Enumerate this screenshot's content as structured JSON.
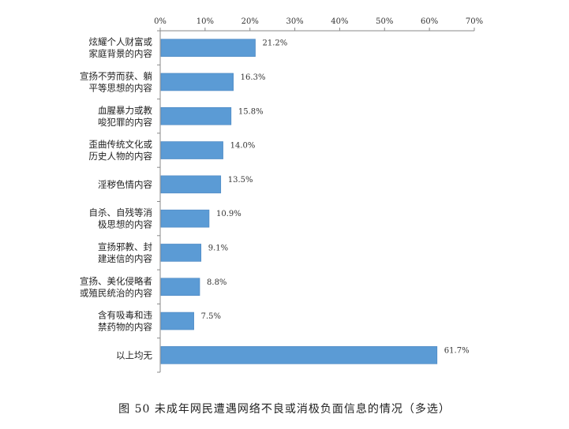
{
  "chart_data": {
    "type": "bar",
    "orientation": "horizontal",
    "caption": "图 50 未成年网民遭遇网络不良或消极负面信息的情况（多选）",
    "categories": [
      [
        "炫耀个人财富或",
        "家庭背景的内容"
      ],
      [
        "宣扬不劳而获、躺",
        "平等思想的内容"
      ],
      [
        "血腥暴力或教",
        "唆犯罪的内容"
      ],
      [
        "歪曲传统文化或",
        "历史人物的内容"
      ],
      [
        "淫秽色情内容"
      ],
      [
        "自杀、自残等消",
        "极思想的内容"
      ],
      [
        "宣扬邪教、封",
        "建迷信的内容"
      ],
      [
        "宣扬、美化侵略者",
        "或殖民统治的内容"
      ],
      [
        "含有吸毒和违",
        "禁药物的内容"
      ],
      [
        "以上均无"
      ]
    ],
    "values": [
      21.2,
      16.3,
      15.8,
      14.0,
      13.5,
      10.9,
      9.1,
      8.8,
      7.5,
      61.7
    ],
    "value_labels": [
      "21.2%",
      "16.3%",
      "15.8%",
      "14.0%",
      "13.5%",
      "10.9%",
      "9.1%",
      "8.8%",
      "7.5%",
      "61.7%"
    ],
    "xlim": [
      0,
      70
    ],
    "xticks": [
      0,
      10,
      20,
      30,
      40,
      50,
      60,
      70
    ],
    "xtick_labels": [
      "0%",
      "10%",
      "20%",
      "30%",
      "40%",
      "50%",
      "60%",
      "70%"
    ],
    "axis_position": "top",
    "grid": false,
    "bar_color": "#5b9bd5"
  }
}
